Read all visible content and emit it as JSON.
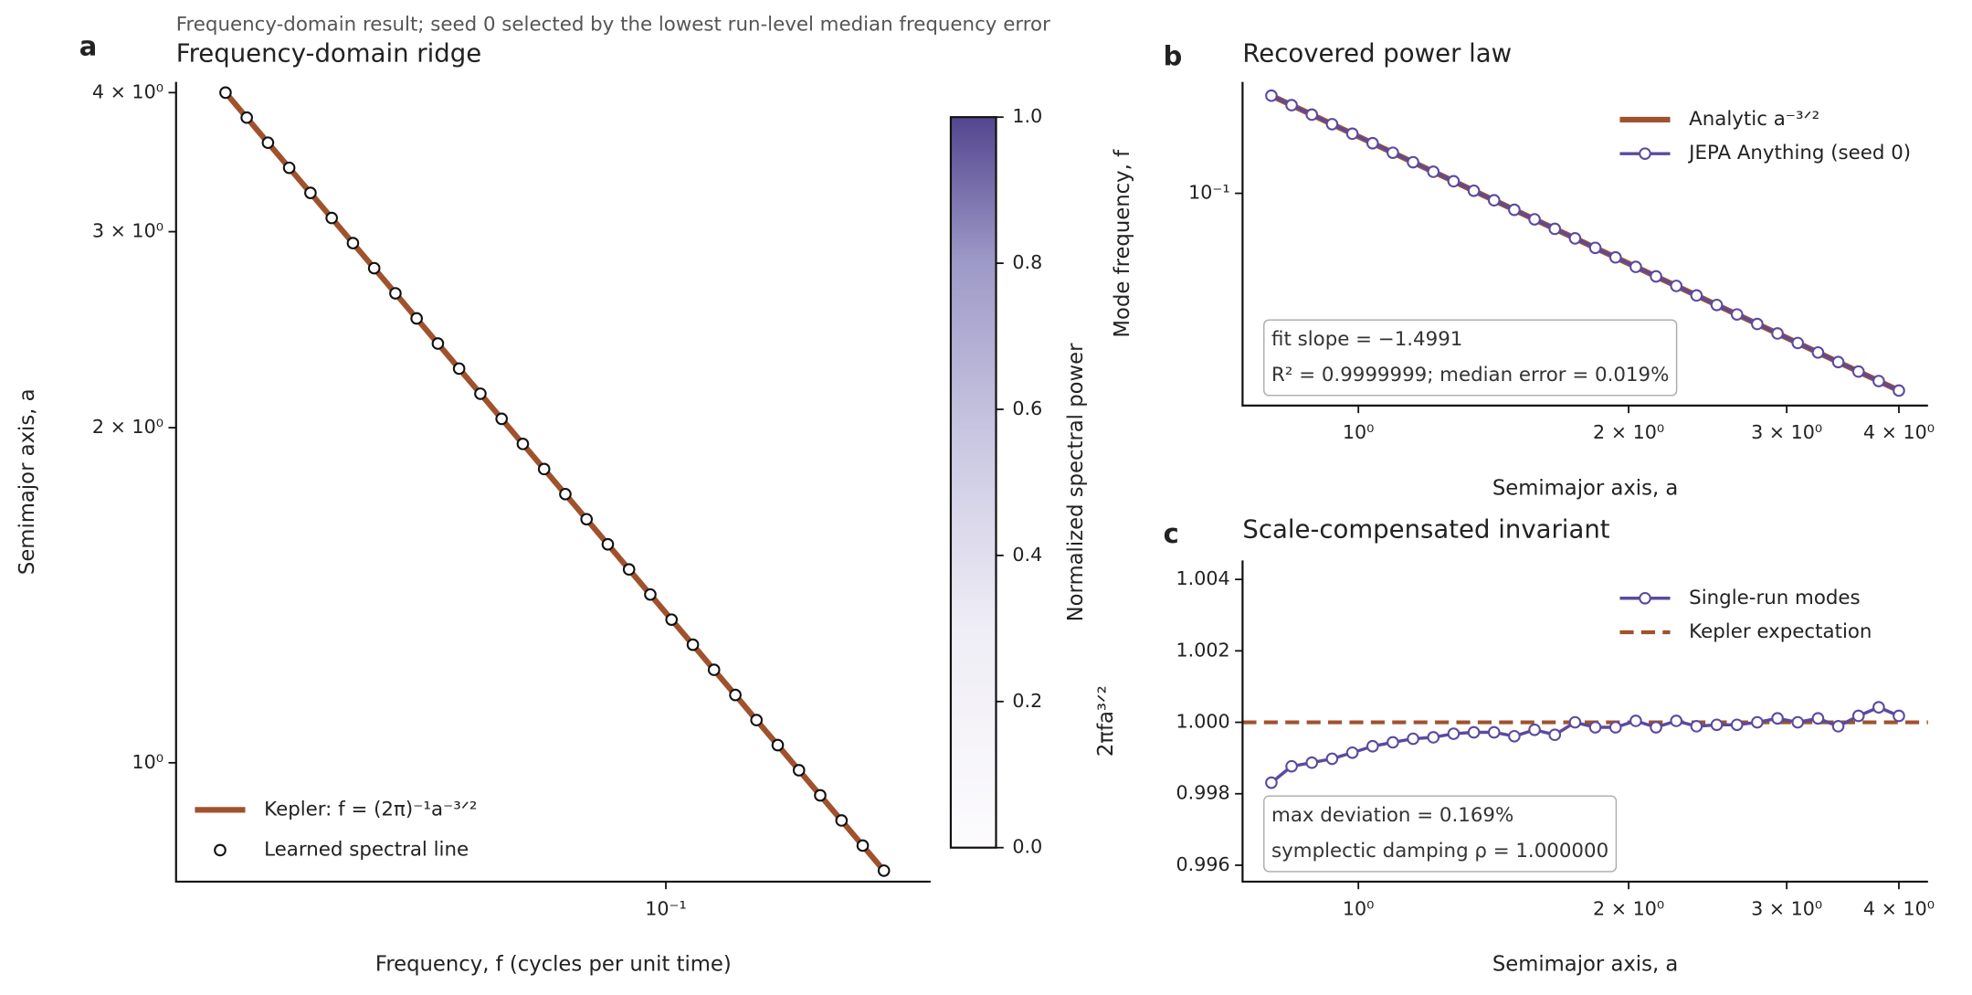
{
  "suptitle": "Frequency-domain result; seed 0 selected by the lowest run-level median frequency error",
  "chart_data": [
    {
      "type": "line",
      "panel_label": "a",
      "title": "Frequency-domain ridge",
      "x_label": "Frequency, f (cycles per unit time)",
      "y_label": "Semimajor axis, a",
      "xscale": "log",
      "yscale": "log",
      "xlim": [
        0.0166,
        0.264
      ],
      "ylim": [
        0.782,
        4.09
      ],
      "xticks": [
        {
          "value": 0.1,
          "label": "10⁻¹"
        }
      ],
      "yticks": [
        {
          "value": 1,
          "label": "10⁰"
        },
        {
          "value": 2,
          "label": "2 × 10⁰"
        },
        {
          "value": 3,
          "label": "3 × 10⁰"
        },
        {
          "value": 4,
          "label": "4 × 10⁰"
        }
      ],
      "legend": "lower left",
      "x": [
        0.2224,
        0.2058,
        0.1904,
        0.1761,
        0.1629,
        0.1507,
        0.1394,
        0.129,
        0.1193,
        0.1104,
        0.1021,
        0.09445,
        0.08737,
        0.08083,
        0.07477,
        0.06917,
        0.06399,
        0.05919,
        0.05476,
        0.05066,
        0.04686,
        0.04335,
        0.0401,
        0.0371,
        0.03432,
        0.03175,
        0.02937,
        0.02717,
        0.02513,
        0.02325,
        0.02151,
        0.0199
      ],
      "series": [
        {
          "name": "Kepler: f = (2π)⁻¹a⁻³ᐟ²",
          "color": "#a0522d",
          "line": true,
          "marker": null,
          "linewidth": 4.5,
          "values": [
            0.8,
            0.8426,
            0.8875,
            0.9348,
            0.9847,
            1.0372,
            1.0924,
            1.1506,
            1.212,
            1.2766,
            1.3446,
            1.4163,
            1.4918,
            1.5713,
            1.655,
            1.7432,
            1.8361,
            1.934,
            2.0371,
            2.1456,
            2.26,
            2.3804,
            2.5073,
            2.6409,
            2.7817,
            2.93,
            3.0861,
            3.2506,
            3.4238,
            3.6063,
            3.7985,
            4.0
          ]
        },
        {
          "name": "Learned spectral line",
          "color": "#111111",
          "line": false,
          "marker": "circle",
          "linewidth": 1,
          "values": [
            0.8,
            0.8426,
            0.8875,
            0.9348,
            0.9847,
            1.0372,
            1.0924,
            1.1506,
            1.212,
            1.2766,
            1.3446,
            1.4163,
            1.4918,
            1.5713,
            1.655,
            1.7432,
            1.8361,
            1.934,
            2.0371,
            2.1456,
            2.26,
            2.3804,
            2.5073,
            2.6409,
            2.7817,
            2.93,
            3.0861,
            3.2506,
            3.4238,
            3.6063,
            3.7985,
            4.0
          ]
        }
      ],
      "colorbar": {
        "label": "Normalized spectral power",
        "lim": [
          0,
          1
        ],
        "ticks": [
          {
            "value": 0,
            "label": "0.0"
          },
          0.2,
          0.4,
          0.6,
          0.8,
          {
            "value": 1,
            "label": "1.0"
          }
        ]
      }
    },
    {
      "type": "line",
      "panel_label": "b",
      "title": "Recovered power law",
      "x_label": "Semimajor axis, a",
      "y_label": "Mode frequency, f",
      "xscale": "log",
      "yscale": "log",
      "xlim": [
        0.743,
        4.31
      ],
      "ylim": [
        0.0176,
        0.249
      ],
      "xticks": [
        {
          "value": 1,
          "label": "10⁰"
        },
        {
          "value": 2,
          "label": "2 × 10⁰"
        },
        {
          "value": 3,
          "label": "3 × 10⁰"
        },
        {
          "value": 4,
          "label": "4 × 10⁰"
        }
      ],
      "yticks": [
        {
          "value": 0.1,
          "label": "10⁻¹"
        }
      ],
      "legend": "upper right",
      "annotation": [
        "fit slope = −1.4991",
        "R² = 0.9999999; median error = 0.019%"
      ],
      "x": [
        0.8,
        0.8426,
        0.8875,
        0.9348,
        0.9847,
        1.0372,
        1.0924,
        1.1506,
        1.212,
        1.2766,
        1.3446,
        1.4163,
        1.4918,
        1.5713,
        1.655,
        1.7432,
        1.8361,
        1.934,
        2.0371,
        2.1456,
        2.26,
        2.3804,
        2.5073,
        2.6409,
        2.7817,
        2.93,
        3.0861,
        3.2506,
        3.4238,
        3.6063,
        3.7985,
        4.0
      ],
      "series": [
        {
          "name": "Analytic a⁻³ᐟ²",
          "color": "#a0522d",
          "line": true,
          "marker": null,
          "linewidth": 4.5,
          "values": [
            0.2224,
            0.2058,
            0.1904,
            0.1761,
            0.1629,
            0.1507,
            0.1394,
            0.129,
            0.1193,
            0.1104,
            0.1021,
            0.09445,
            0.08737,
            0.08083,
            0.07477,
            0.06917,
            0.06399,
            0.05919,
            0.05476,
            0.05066,
            0.04686,
            0.04335,
            0.0401,
            0.0371,
            0.03432,
            0.03175,
            0.02937,
            0.02717,
            0.02513,
            0.02325,
            0.02151,
            0.0199
          ]
        },
        {
          "name": "JEPA Anything (seed 0)",
          "color": "#5b4a9e",
          "line": true,
          "marker": "circle",
          "linewidth": 2.5,
          "values": [
            0.2224,
            0.2058,
            0.1904,
            0.1761,
            0.1629,
            0.1507,
            0.1394,
            0.129,
            0.1193,
            0.1104,
            0.1021,
            0.09445,
            0.08737,
            0.08083,
            0.07477,
            0.06917,
            0.06399,
            0.05919,
            0.05476,
            0.05066,
            0.04686,
            0.04335,
            0.0401,
            0.0371,
            0.03432,
            0.03175,
            0.02937,
            0.02717,
            0.02513,
            0.02325,
            0.02151,
            0.0199
          ]
        }
      ]
    },
    {
      "type": "line",
      "panel_label": "c",
      "title": "Scale-compensated invariant",
      "x_label": "Semimajor axis, a",
      "y_label": "2πfa³ᐟ²",
      "xscale": "log",
      "yscale": "linear",
      "xlim": [
        0.743,
        4.31
      ],
      "ylim": [
        0.99554,
        1.00453
      ],
      "xticks": [
        {
          "value": 1,
          "label": "10⁰"
        },
        {
          "value": 2,
          "label": "2 × 10⁰"
        },
        {
          "value": 3,
          "label": "3 × 10⁰"
        },
        {
          "value": 4,
          "label": "4 × 10⁰"
        }
      ],
      "yticks": [
        0.996,
        0.998,
        {
          "value": 1,
          "label": "1.000"
        },
        1.002,
        1.004
      ],
      "legend": "upper right",
      "annotation": [
        "max deviation = 0.169%",
        "symplectic damping ρ = 1.000000"
      ],
      "x": [
        0.8,
        0.8426,
        0.8875,
        0.9348,
        0.9847,
        1.0372,
        1.0924,
        1.1506,
        1.212,
        1.2766,
        1.3446,
        1.4163,
        1.4918,
        1.5713,
        1.655,
        1.7432,
        1.8361,
        1.934,
        2.0371,
        2.1456,
        2.26,
        2.3804,
        2.5073,
        2.6409,
        2.7817,
        2.93,
        3.0861,
        3.2506,
        3.4238,
        3.6063,
        3.7985,
        4.0
      ],
      "series": [
        {
          "name": "Single-run modes",
          "color": "#5b4a9e",
          "line": true,
          "marker": "circle",
          "linewidth": 2.5,
          "values": [
            0.99831,
            0.99877,
            0.99887,
            0.99898,
            0.99915,
            0.99933,
            0.99944,
            0.99954,
            0.99958,
            0.99968,
            0.99972,
            0.99972,
            0.99961,
            0.99979,
            0.99965,
            1.0,
            0.99986,
            0.99986,
            1.00004,
            0.99986,
            1.00004,
            0.99989,
            0.99993,
            0.99993,
            1.0,
            1.00011,
            1.0,
            1.00011,
            0.99989,
            1.00018,
            1.00042,
            1.00018
          ]
        }
      ],
      "reference_lines": [
        {
          "name": "Kepler expectation",
          "color": "#a0522d",
          "value": 1,
          "style": "dashed"
        }
      ]
    }
  ]
}
